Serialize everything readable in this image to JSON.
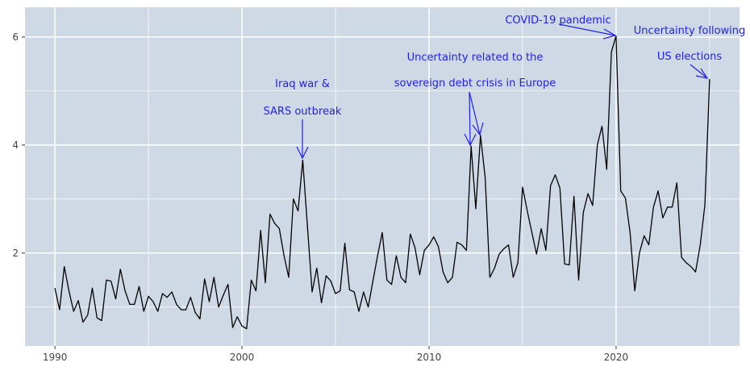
{
  "chart_data": {
    "type": "line",
    "title": "",
    "xlabel": "",
    "ylabel": "",
    "xlim": [
      1988.4,
      2026.6
    ],
    "ylim": [
      0.28,
      6.55
    ],
    "xticks": [
      1990,
      2000,
      2010,
      2020
    ],
    "xtick_labels": [
      "1990",
      "2000",
      "2010",
      "2020"
    ],
    "yticks": [
      2,
      4,
      6
    ],
    "ytick_labels": [
      "2",
      "4",
      "6"
    ],
    "grid": true,
    "colors": {
      "panel": "#cfd9e5",
      "grid": "#ffffff",
      "line": "#000000",
      "annotation": "#2222ee"
    },
    "series": [
      {
        "x": [
          1990.0,
          1990.25,
          1990.5,
          1990.75,
          1991.0,
          1991.25,
          1991.5,
          1991.75,
          1992.0,
          1992.25,
          1992.5,
          1992.75,
          1993.0,
          1993.25,
          1993.5,
          1993.75,
          1994.0,
          1994.25,
          1994.5,
          1994.75,
          1995.0,
          1995.25,
          1995.5,
          1995.75,
          1996.0,
          1996.25,
          1996.5,
          1996.75,
          1997.0,
          1997.25,
          1997.5,
          1997.75,
          1998.0,
          1998.25,
          1998.5,
          1998.75,
          1999.0,
          1999.25,
          1999.5,
          1999.75,
          2000.0,
          2000.25,
          2000.5,
          2000.75,
          2001.0,
          2001.25,
          2001.5,
          2001.75,
          2002.0,
          2002.25,
          2002.5,
          2002.75,
          2003.0,
          2003.25,
          2003.5,
          2003.75,
          2004.0,
          2004.25,
          2004.5,
          2004.75,
          2005.0,
          2005.25,
          2005.5,
          2005.75,
          2006.0,
          2006.25,
          2006.5,
          2006.75,
          2007.0,
          2007.25,
          2007.5,
          2007.75,
          2008.0,
          2008.25,
          2008.5,
          2008.75,
          2009.0,
          2009.25,
          2009.5,
          2009.75,
          2010.0,
          2010.25,
          2010.5,
          2010.75,
          2011.0,
          2011.25,
          2011.5,
          2011.75,
          2012.0,
          2012.25,
          2012.5,
          2012.75,
          2013.0,
          2013.25,
          2013.5,
          2013.75,
          2014.0,
          2014.25,
          2014.5,
          2014.75,
          2015.0,
          2015.25,
          2015.5,
          2015.75,
          2016.0,
          2016.25,
          2016.5,
          2016.75,
          2017.0,
          2017.25,
          2017.5,
          2017.75,
          2018.0,
          2018.25,
          2018.5,
          2018.75,
          2019.0,
          2019.25,
          2019.5,
          2019.75,
          2020.0,
          2020.25,
          2020.5,
          2020.75,
          2021.0,
          2021.25,
          2021.5,
          2021.75,
          2022.0,
          2022.25,
          2022.5,
          2022.75,
          2023.0,
          2023.25,
          2023.5,
          2023.75,
          2024.0,
          2024.25,
          2024.5,
          2024.75,
          2025.0
        ],
        "values": [
          1.35,
          0.95,
          1.75,
          1.3,
          0.92,
          1.12,
          0.72,
          0.85,
          1.35,
          0.8,
          0.75,
          1.5,
          1.48,
          1.15,
          1.7,
          1.3,
          1.05,
          1.05,
          1.38,
          0.92,
          1.2,
          1.1,
          0.92,
          1.25,
          1.18,
          1.28,
          1.05,
          0.95,
          0.95,
          1.18,
          0.9,
          0.78,
          1.52,
          1.1,
          1.55,
          1.0,
          1.22,
          1.42,
          0.62,
          0.82,
          0.65,
          0.6,
          1.5,
          1.3,
          2.42,
          1.45,
          2.72,
          2.55,
          2.45,
          1.95,
          1.55,
          3.0,
          2.78,
          3.72,
          2.5,
          1.28,
          1.72,
          1.08,
          1.58,
          1.48,
          1.25,
          1.3,
          2.18,
          1.32,
          1.28,
          0.92,
          1.28,
          1.0,
          1.48,
          1.95,
          2.38,
          1.5,
          1.42,
          1.95,
          1.55,
          1.45,
          2.35,
          2.1,
          1.6,
          2.05,
          2.15,
          2.3,
          2.12,
          1.65,
          1.45,
          1.55,
          2.2,
          2.15,
          2.05,
          3.98,
          2.82,
          4.18,
          3.4,
          1.55,
          1.72,
          1.98,
          2.08,
          2.15,
          1.55,
          1.82,
          3.22,
          2.78,
          2.38,
          1.98,
          2.45,
          2.05,
          3.25,
          3.45,
          3.2,
          1.8,
          1.78,
          3.05,
          1.5,
          2.75,
          3.1,
          2.88,
          4.0,
          4.35,
          3.55,
          5.72,
          6.02,
          3.15,
          3.02,
          2.38,
          1.3,
          2.0,
          2.32,
          2.15,
          2.85,
          3.15,
          2.65,
          2.85,
          2.85,
          3.3,
          1.92,
          1.82,
          1.75,
          1.65,
          2.15,
          2.9,
          5.22
        ]
      }
    ],
    "annotations": [
      {
        "lines": [
          "Iraq war &",
          "SARS outbreak"
        ],
        "point": [
          2003.25,
          3.72
        ]
      },
      {
        "lines": [
          "Uncertainty related to the",
          "sovereign debt crisis in Europe"
        ],
        "points": [
          [
            2012.25,
            3.98
          ],
          [
            2012.75,
            4.18
          ]
        ]
      },
      {
        "lines": [
          "COVID-19 pandemic"
        ],
        "point": [
          2020.0,
          6.02
        ]
      },
      {
        "lines": [
          "Uncertainty following",
          "US elections"
        ],
        "point": [
          2025.0,
          5.22
        ]
      }
    ]
  }
}
